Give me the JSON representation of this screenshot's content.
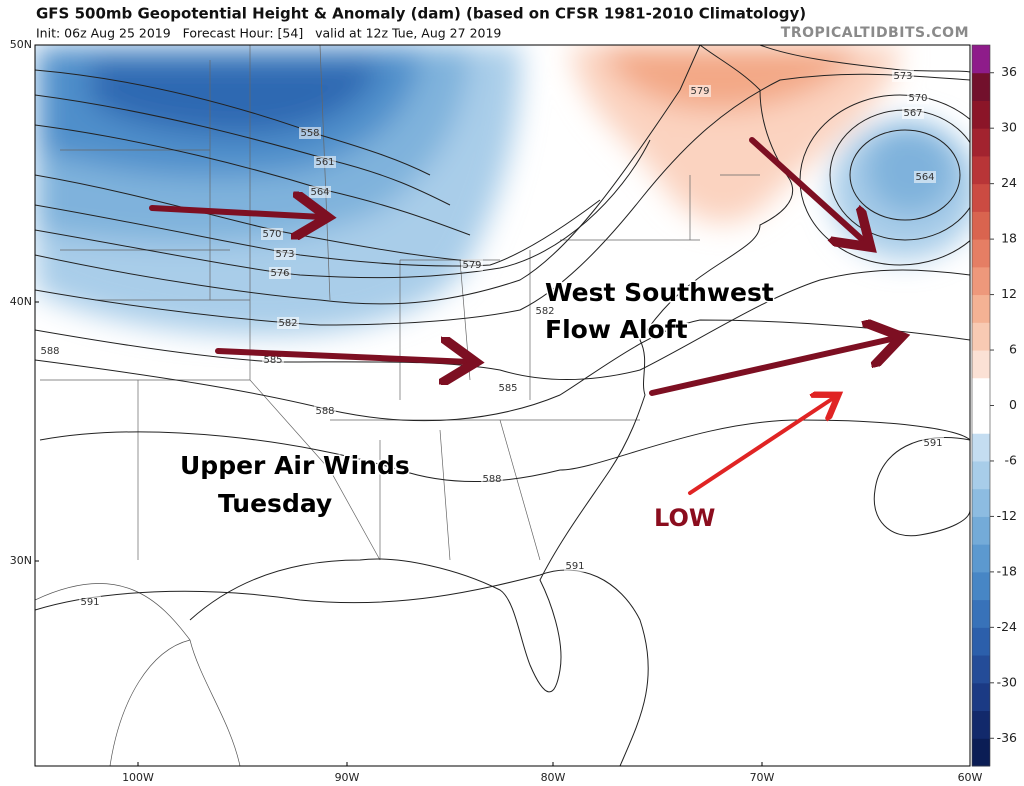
{
  "header": {
    "title": "GFS 500mb Geopotential Height & Anomaly (dam) (based on CFSR 1981-2010 Climatology)",
    "subtitle": "Init: 06z Aug 25 2019   Forecast Hour: [54]   valid at 12z Tue, Aug 27 2019",
    "credit": "TROPICALTIDBITS.COM"
  },
  "map": {
    "lat_labels": [
      "50N",
      "40N",
      "30N"
    ],
    "lon_labels": [
      "100W",
      "90W",
      "80W",
      "70W",
      "60W"
    ],
    "contour_labels": [
      558,
      561,
      564,
      570,
      573,
      576,
      579,
      582,
      585,
      588,
      588,
      585,
      582,
      588,
      591,
      591,
      591,
      573,
      570,
      567,
      564,
      579
    ]
  },
  "colorbar": {
    "ticks": [
      36,
      30,
      24,
      18,
      12,
      6,
      0,
      -6,
      -12,
      -18,
      -24,
      -30,
      -36
    ],
    "range": [
      -39,
      39
    ],
    "colors": [
      "#0b1d55",
      "#12296b",
      "#1b3a84",
      "#244c98",
      "#2c5fab",
      "#3872b9",
      "#4786c5",
      "#5c99cf",
      "#74abd8",
      "#8dbce1",
      "#a8cde9",
      "#c4ddf1",
      "#ffffff",
      "#ffffff",
      "#fbe1d5",
      "#f8cab3",
      "#f4b294",
      "#ee987b",
      "#e57e64",
      "#d9644f",
      "#cb4b42",
      "#b83537",
      "#a2232f",
      "#8b1528",
      "#72102c",
      "#8e1c8a"
    ]
  },
  "annotations": {
    "flow": [
      "West Southwest",
      "Flow Aloft"
    ],
    "winds": [
      "Upper Air Winds",
      "Tuesday"
    ],
    "low": "LOW"
  }
}
